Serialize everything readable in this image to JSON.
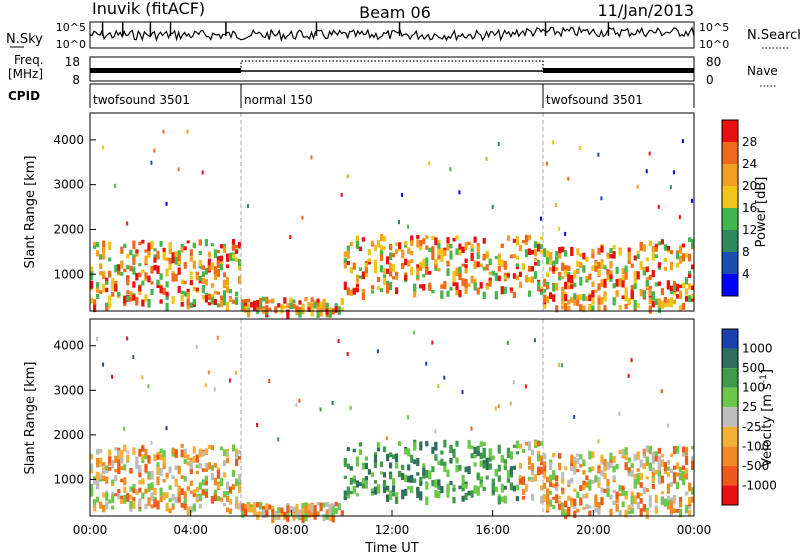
{
  "header": {
    "station": "Inuvik (fitACF)",
    "beam": "Beam 06",
    "date": "11/Jan/2013"
  },
  "noise_panel": {
    "left_label": "N.Sky",
    "right_label": "N.Search",
    "left_ticks": [
      "10^5",
      "10^0"
    ],
    "right_ticks": [
      "10^5",
      "10^0"
    ]
  },
  "freq_panel": {
    "left_label_1": "Freq.",
    "left_label_2": "[MHz]",
    "right_label": "Nave",
    "left_ticks": [
      "18",
      "8"
    ],
    "right_ticks": [
      "80",
      "0"
    ]
  },
  "cpid_panel": {
    "label": "CPID",
    "segments": [
      {
        "name": "twofsound 3501",
        "start_hour": 0
      },
      {
        "name": "normal 150",
        "start_hour": 6
      },
      {
        "name": "twofsound 3501",
        "start_hour": 18
      }
    ]
  },
  "chart_data": [
    {
      "type": "heatmap",
      "name": "power",
      "xlabel": "Time UT",
      "ylabel": "Slant Range [km]",
      "xlim_hours": [
        0,
        24
      ],
      "ylim_km": [
        180,
        4600
      ],
      "y_ticks": [
        "1000",
        "2000",
        "3000",
        "4000"
      ],
      "colorbar": {
        "label": "Power [dB]",
        "ticks": [
          "4",
          "8",
          "12",
          "16",
          "20",
          "24",
          "28"
        ],
        "colors": [
          "#0000ff",
          "#1a4fb0",
          "#2e8a5a",
          "#43b74f",
          "#f0c418",
          "#f2a024",
          "#f06a1c",
          "#e81010"
        ]
      }
    },
    {
      "type": "heatmap",
      "name": "velocity",
      "xlabel": "Time UT",
      "ylabel": "Slant Range [km]",
      "xlim_hours": [
        0,
        24
      ],
      "ylim_km": [
        180,
        4600
      ],
      "x_ticks": [
        "00:00",
        "04:00",
        "08:00",
        "12:00",
        "16:00",
        "20:00",
        "00:00"
      ],
      "y_ticks": [
        "1000",
        "2000",
        "3000",
        "4000"
      ],
      "colorbar": {
        "label_main": "Velocity [m s",
        "label_sup": "-1",
        "label_end": "]",
        "ticks": [
          "1000",
          "500",
          "100",
          "25",
          "-25",
          "-100",
          "-500",
          "-1000"
        ],
        "colors": [
          "#1c3fb0",
          "#2e6e5a",
          "#3f9a4a",
          "#6cc84a",
          "#bdbdbd",
          "#f2b035",
          "#f08a22",
          "#ee5a1a",
          "#e81010"
        ]
      }
    }
  ]
}
